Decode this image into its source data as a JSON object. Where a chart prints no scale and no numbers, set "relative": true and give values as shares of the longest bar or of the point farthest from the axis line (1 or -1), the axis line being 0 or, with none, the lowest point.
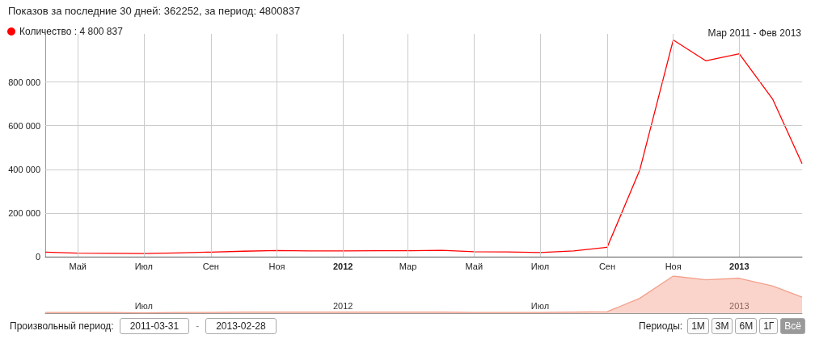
{
  "chart_data": [
    {
      "type": "line",
      "title": "Показов за последние 30 дней: 362252, за период: 4800837",
      "subtitle": "Мар 2011 - Фев 2013",
      "x": [
        "2011-04-01",
        "2011-05-01",
        "2011-06-01",
        "2011-07-01",
        "2011-08-01",
        "2011-09-01",
        "2011-10-01",
        "2011-11-01",
        "2011-12-01",
        "2012-01-01",
        "2012-02-01",
        "2012-03-01",
        "2012-04-01",
        "2012-05-01",
        "2012-06-01",
        "2012-07-01",
        "2012-08-01",
        "2012-09-01",
        "2012-10-01",
        "2012-11-01",
        "2012-12-01",
        "2013-01-01",
        "2013-02-01",
        "2013-02-28"
      ],
      "series": [
        {
          "name": "Количество : 4 800 837",
          "color": "#ff0000",
          "values": [
            21000,
            16000,
            15000,
            14000,
            17000,
            21000,
            25000,
            28000,
            26000,
            26000,
            27000,
            27000,
            29000,
            23000,
            22000,
            19000,
            26000,
            43000,
            395000,
            992000,
            897000,
            929000,
            720000,
            426000
          ]
        }
      ],
      "xlim": [
        "2011-04-01",
        "2013-02-28"
      ],
      "xticks": [
        {
          "value": "2011-05-01",
          "label": "Май"
        },
        {
          "value": "2011-07-01",
          "label": "Июл"
        },
        {
          "value": "2011-09-01",
          "label": "Сен"
        },
        {
          "value": "2011-11-01",
          "label": "Ноя"
        },
        {
          "value": "2012-01-01",
          "label": "2012"
        },
        {
          "value": "2012-03-01",
          "label": "Мар"
        },
        {
          "value": "2012-05-01",
          "label": "Май"
        },
        {
          "value": "2012-07-01",
          "label": "Июл"
        },
        {
          "value": "2012-09-01",
          "label": "Сен"
        },
        {
          "value": "2012-11-01",
          "label": "Ноя"
        },
        {
          "value": "2013-01-01",
          "label": "2013"
        }
      ],
      "ylim": [
        0,
        1020000
      ],
      "yticks": [
        {
          "value": 0,
          "label": "0"
        },
        {
          "value": 200000,
          "label": "200 000"
        },
        {
          "value": 400000,
          "label": "400 000"
        },
        {
          "value": 600000,
          "label": "600 000"
        },
        {
          "value": 800000,
          "label": "800 000"
        }
      ],
      "grid": true,
      "legend": "top left",
      "marker": "none"
    },
    {
      "type": "area",
      "relative": true,
      "x": [
        "2011-04-01",
        "2011-05-01",
        "2011-06-01",
        "2011-07-01",
        "2011-08-01",
        "2011-09-01",
        "2011-10-01",
        "2011-11-01",
        "2011-12-01",
        "2012-01-01",
        "2012-02-01",
        "2012-03-01",
        "2012-04-01",
        "2012-05-01",
        "2012-06-01",
        "2012-07-01",
        "2012-08-01",
        "2012-09-01",
        "2012-10-01",
        "2012-11-01",
        "2012-12-01",
        "2013-01-01",
        "2013-02-01",
        "2013-02-28"
      ],
      "series": [
        {
          "color": "#f4a08c",
          "values": [
            0.02,
            0.02,
            0.02,
            0.01,
            0.02,
            0.02,
            0.03,
            0.03,
            0.03,
            0.03,
            0.03,
            0.03,
            0.03,
            0.02,
            0.02,
            0.02,
            0.03,
            0.04,
            0.4,
            1,
            0.9,
            0.94,
            0.73,
            0.43
          ]
        }
      ],
      "xlim": [
        "2011-04-01",
        "2013-02-28"
      ],
      "xticks": [
        {
          "value": "2011-07-01",
          "label": "Июл"
        },
        {
          "value": "2012-01-01",
          "label": "2012"
        },
        {
          "value": "2012-07-01",
          "label": "Июл"
        },
        {
          "value": "2013-01-01",
          "label": "2013"
        }
      ],
      "tick_labels": "x",
      "annotations": [
        "Произвольный период:",
        "2011-03-31",
        "-",
        "2013-02-28",
        "Периоды:",
        "1М",
        "3М",
        "6М",
        "1Г",
        "Всё"
      ]
    }
  ]
}
